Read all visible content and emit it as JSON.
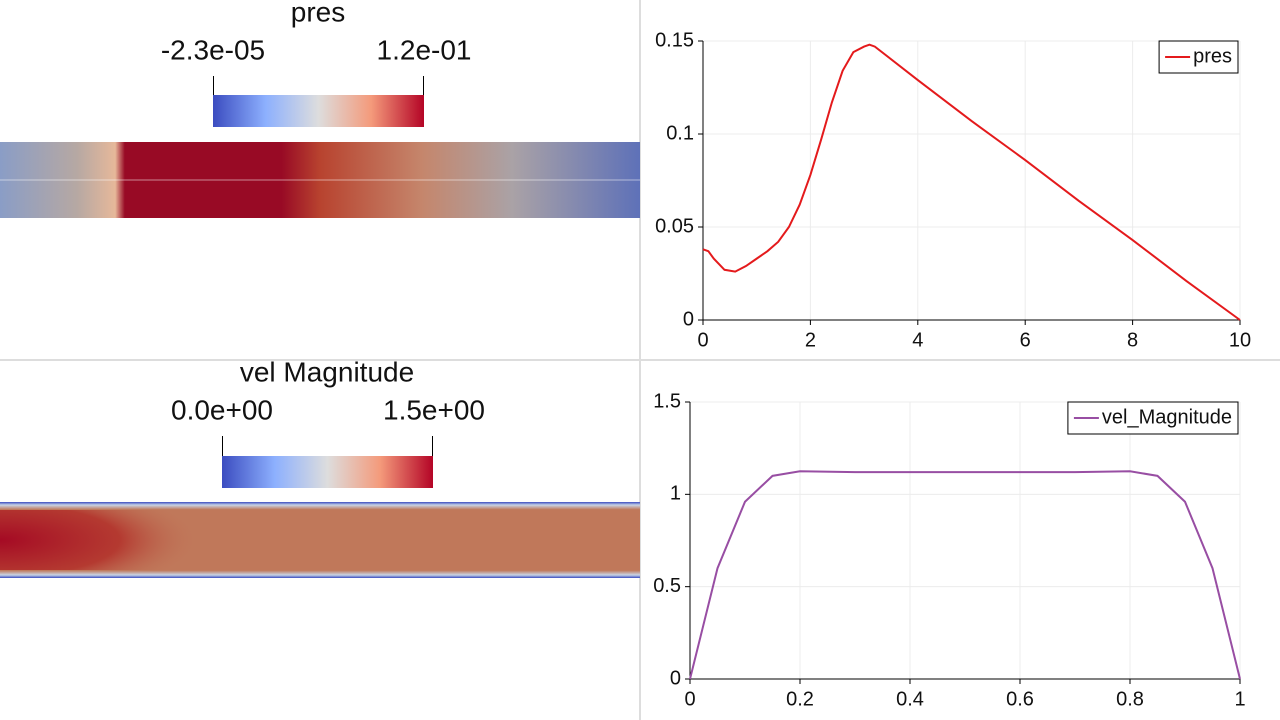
{
  "views": [
    {
      "title": "pres",
      "range_labels": [
        "-2.3e-05",
        "1.2e-01"
      ]
    },
    {
      "title": "vel Magnitude",
      "range_labels": [
        "0.0e+00",
        "1.5e+00"
      ]
    }
  ],
  "chart_data": [
    {
      "type": "line",
      "x": [
        0,
        0.1,
        0.2,
        0.3,
        0.4,
        0.6,
        0.8,
        1.0,
        1.2,
        1.4,
        1.6,
        1.8,
        2.0,
        2.2,
        2.4,
        2.6,
        2.8,
        3.0,
        3.1,
        3.2,
        4,
        5,
        6,
        7,
        8,
        9,
        10
      ],
      "series": [
        {
          "name": "pres",
          "color": "#e41a1c",
          "values": [
            0.038,
            0.037,
            0.033,
            0.03,
            0.027,
            0.026,
            0.029,
            0.033,
            0.037,
            0.042,
            0.05,
            0.062,
            0.078,
            0.097,
            0.117,
            0.134,
            0.144,
            0.147,
            0.148,
            0.147,
            0.129,
            0.107,
            0.086,
            0.064,
            0.043,
            0.021,
            0
          ]
        }
      ],
      "xlim": [
        0,
        10
      ],
      "ylim": [
        0,
        0.15
      ],
      "xticks": [
        0,
        2,
        4,
        6,
        8,
        10
      ],
      "yticks": [
        0,
        0.05,
        0.1,
        0.15
      ],
      "grid": true,
      "legend": "top-right"
    },
    {
      "type": "line",
      "x": [
        0,
        0.05,
        0.1,
        0.15,
        0.2,
        0.3,
        0.4,
        0.5,
        0.6,
        0.7,
        0.8,
        0.85,
        0.9,
        0.95,
        1
      ],
      "series": [
        {
          "name": "vel_Magnitude",
          "color": "#984ea3",
          "values": [
            0,
            0.6,
            0.96,
            1.1,
            1.125,
            1.12,
            1.12,
            1.12,
            1.12,
            1.12,
            1.125,
            1.1,
            0.96,
            0.6,
            0
          ]
        }
      ],
      "xlim": [
        0,
        1
      ],
      "ylim": [
        0,
        1.5
      ],
      "xticks": [
        0,
        0.2,
        0.4,
        0.6,
        0.8,
        1
      ],
      "yticks": [
        0,
        0.5,
        1,
        1.5
      ],
      "grid": true,
      "legend": "top-right"
    }
  ]
}
